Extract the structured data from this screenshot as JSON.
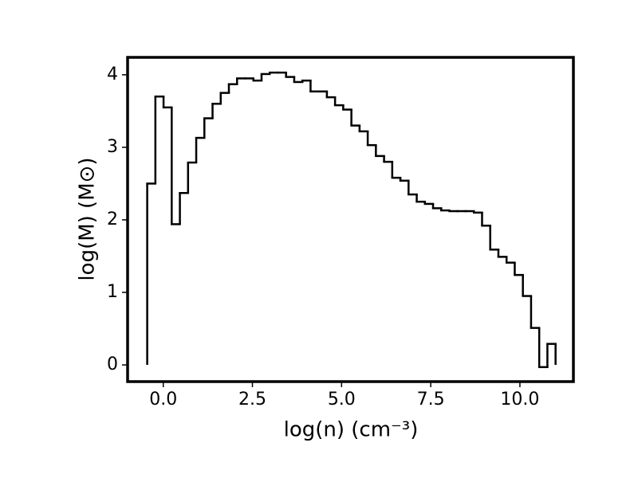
{
  "chart_data": {
    "type": "histogram",
    "xlabel": "log(n) (cm⁻³)",
    "ylabel": "log(M) (M⊙)",
    "bins": [
      -0.45,
      -0.221,
      0.008,
      0.237,
      0.466,
      0.695,
      0.924,
      1.153,
      1.382,
      1.611,
      1.84,
      2.069,
      2.298,
      2.527,
      2.756,
      2.985,
      3.214,
      3.443,
      3.672,
      3.901,
      4.13,
      4.359,
      4.588,
      4.817,
      5.046,
      5.275,
      5.504,
      5.733,
      5.962,
      6.191,
      6.42,
      6.649,
      6.878,
      7.107,
      7.336,
      7.565,
      7.794,
      8.023,
      8.252,
      8.481,
      8.71,
      8.939,
      9.168,
      9.397,
      9.626,
      9.855,
      10.084,
      10.313,
      10.542,
      10.771,
      11.0
    ],
    "values": [
      2.5,
      3.7,
      3.55,
      1.94,
      2.37,
      2.79,
      3.13,
      3.4,
      3.6,
      3.75,
      3.87,
      3.95,
      3.95,
      3.92,
      4.01,
      4.03,
      4.03,
      3.97,
      3.9,
      3.92,
      3.77,
      3.77,
      3.69,
      3.58,
      3.52,
      3.3,
      3.22,
      3.03,
      2.88,
      2.8,
      2.58,
      2.54,
      2.35,
      2.25,
      2.22,
      2.16,
      2.13,
      2.12,
      2.12,
      2.12,
      2.1,
      1.92,
      1.59,
      1.49,
      1.41,
      1.24,
      0.95,
      0.51,
      -0.03,
      0.29
    ],
    "color": "#000000",
    "xlim": [
      -1.0,
      11.5
    ],
    "ylim": [
      -0.23,
      4.24
    ],
    "xticks": [
      {
        "value": 0,
        "label": "0.0"
      },
      2.5,
      {
        "value": 5,
        "label": "5.0"
      },
      7.5,
      {
        "value": 10,
        "label": "10.0"
      }
    ],
    "yticks": [
      0,
      1,
      2,
      3,
      4
    ],
    "grid": false
  }
}
